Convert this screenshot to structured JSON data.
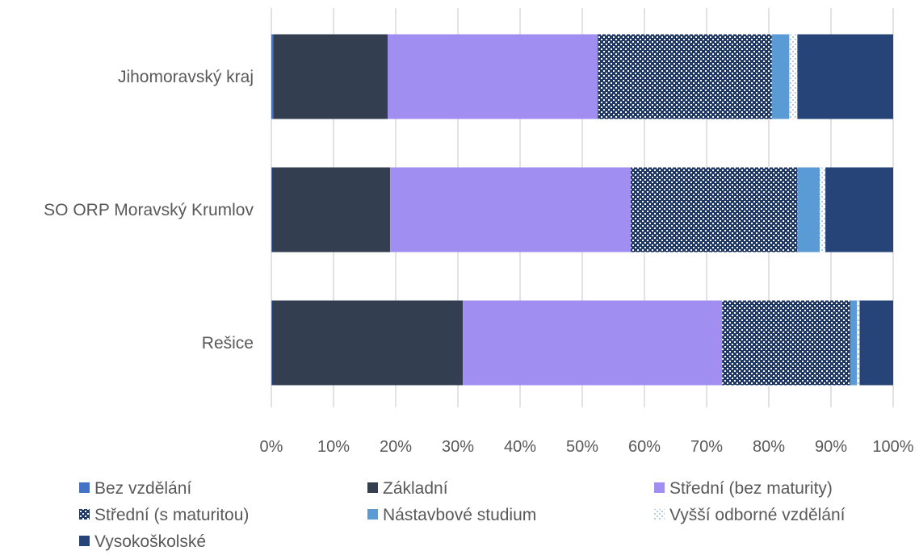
{
  "chart_data": {
    "type": "bar",
    "orientation": "horizontal",
    "stacked": "percent",
    "title": "",
    "xlabel": "",
    "ylabel": "",
    "xlim": [
      0,
      100
    ],
    "x_ticks": [
      "0%",
      "10%",
      "20%",
      "30%",
      "40%",
      "50%",
      "60%",
      "70%",
      "80%",
      "90%",
      "100%"
    ],
    "grid": "vertical",
    "legend_position": "bottom",
    "categories": [
      "Jihomoravský kraj",
      "SO ORP Moravský Krumlov",
      "Rešice"
    ],
    "series": [
      {
        "name": "Bez vzdělání",
        "color": "#4472c4",
        "pattern": "solid",
        "values": [
          0.3,
          0.1,
          0.1
        ]
      },
      {
        "name": "Základní",
        "color": "#333f50",
        "pattern": "solid",
        "values": [
          18.4,
          19.0,
          30.7
        ]
      },
      {
        "name": "Střední (bez maturity)",
        "color": "#a08ff0",
        "pattern": "solid",
        "values": [
          33.8,
          38.7,
          41.7
        ]
      },
      {
        "name": "Střední (s maturitou)",
        "color": "#1f3864",
        "pattern": "checker",
        "values": [
          28.0,
          26.8,
          20.6
        ]
      },
      {
        "name": "Nástavbové studium",
        "color": "#5b9bd5",
        "pattern": "solid",
        "values": [
          2.8,
          3.6,
          1.1
        ]
      },
      {
        "name": "Vyšší odborné vzdělání",
        "color": "#c5d3ee",
        "pattern": "checker-light",
        "values": [
          1.3,
          0.9,
          0.4
        ]
      },
      {
        "name": "Vysokoškolské",
        "color": "#264478",
        "pattern": "solid",
        "values": [
          15.4,
          10.9,
          5.4
        ]
      }
    ]
  }
}
